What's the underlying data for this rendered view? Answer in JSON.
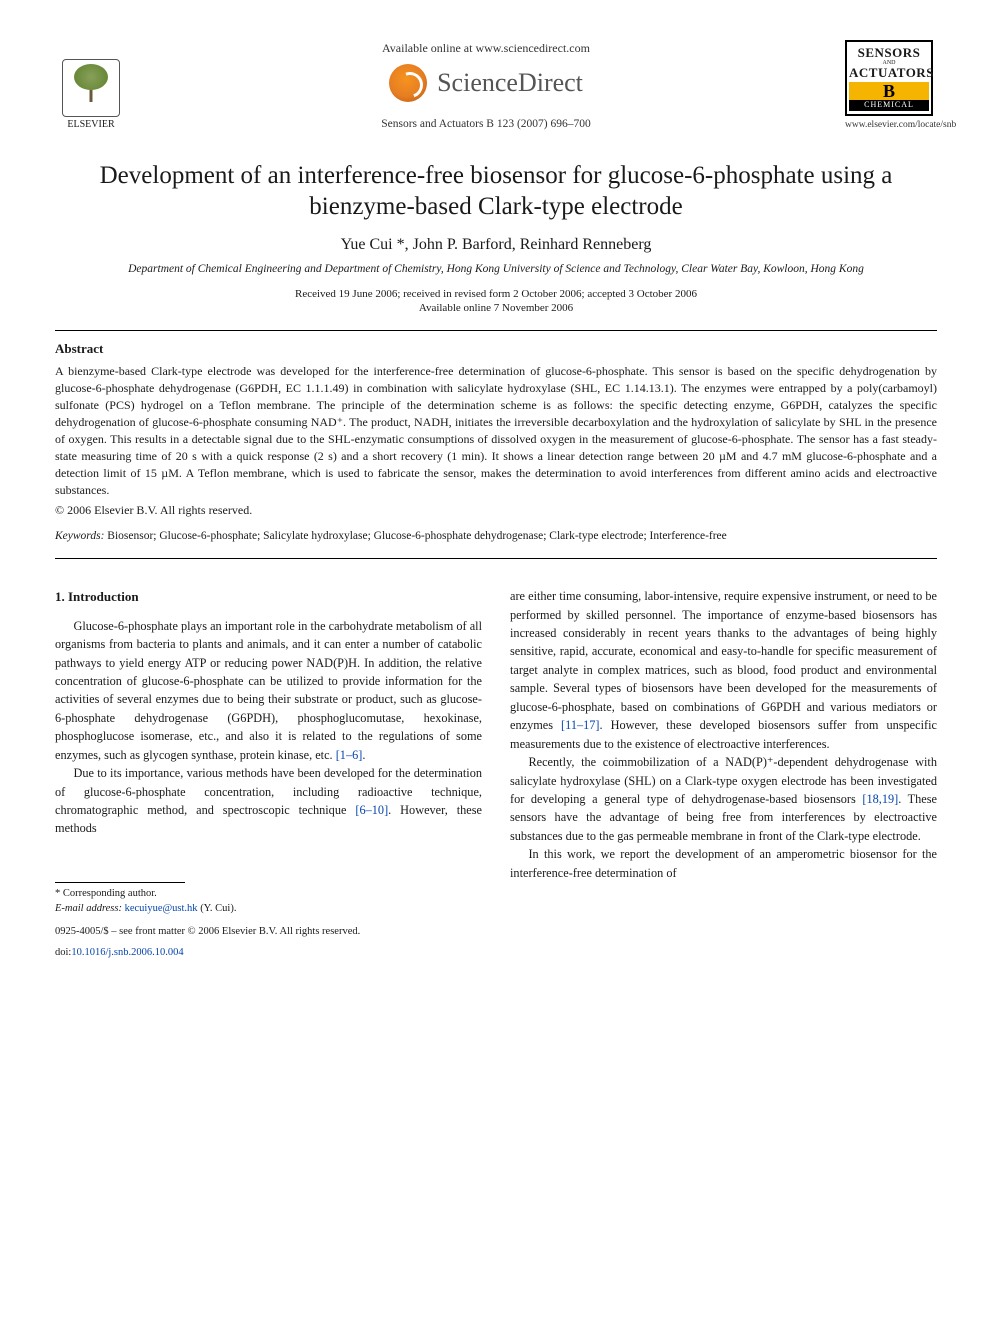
{
  "header": {
    "publisher": "ELSEVIER",
    "available_online": "Available online at www.sciencedirect.com",
    "sciencedirect": "ScienceDirect",
    "journal_reference": "Sensors and Actuators B 123 (2007) 696–700",
    "journal_box": {
      "line1": "SENSORS",
      "and": "AND",
      "line2": "ACTUATORS",
      "letter": "B",
      "chem": "CHEMICAL"
    },
    "journal_url": "www.elsevier.com/locate/snb"
  },
  "title": "Development of an interference-free biosensor for glucose-6-phosphate using a bienzyme-based Clark-type electrode",
  "authors_line": "Yue Cui *, John P. Barford, Reinhard Renneberg",
  "affiliation": "Department of Chemical Engineering and Department of Chemistry, Hong Kong University of Science and Technology,\nClear Water Bay, Kowloon, Hong Kong",
  "dates": {
    "received": "Received 19 June 2006; received in revised form 2 October 2006; accepted 3 October 2006",
    "online": "Available online 7 November 2006"
  },
  "abstract": {
    "heading": "Abstract",
    "body": "A bienzyme-based Clark-type electrode was developed for the interference-free determination of glucose-6-phosphate. This sensor is based on the specific dehydrogenation by glucose-6-phosphate dehydrogenase (G6PDH, EC 1.1.1.49) in combination with salicylate hydroxylase (SHL, EC 1.14.13.1). The enzymes were entrapped by a poly(carbamoyl) sulfonate (PCS) hydrogel on a Teflon membrane. The principle of the determination scheme is as follows: the specific detecting enzyme, G6PDH, catalyzes the specific dehydrogenation of glucose-6-phosphate consuming NAD⁺. The product, NADH, initiates the irreversible decarboxylation and the hydroxylation of salicylate by SHL in the presence of oxygen. This results in a detectable signal due to the SHL-enzymatic consumptions of dissolved oxygen in the measurement of glucose-6-phosphate. The sensor has a fast steady-state measuring time of 20 s with a quick response (2 s) and a short recovery (1 min). It shows a linear detection range between 20 µM and 4.7 mM glucose-6-phosphate and a detection limit of 15 µM. A Teflon membrane, which is used to fabricate the sensor, makes the determination to avoid interferences from different amino acids and electroactive substances.",
    "copyright": "© 2006 Elsevier B.V. All rights reserved."
  },
  "keywords": {
    "label": "Keywords:",
    "list": "Biosensor; Glucose-6-phosphate; Salicylate hydroxylase; Glucose-6-phosphate dehydrogenase; Clark-type electrode; Interference-free"
  },
  "section1": {
    "heading": "1. Introduction",
    "p1": "Glucose-6-phosphate plays an important role in the carbohydrate metabolism of all organisms from bacteria to plants and animals, and it can enter a number of catabolic pathways to yield energy ATP or reducing power NAD(P)H. In addition, the relative concentration of glucose-6-phosphate can be utilized to provide information for the activities of several enzymes due to being their substrate or product, such as glucose-6-phosphate dehydrogenase (G6PDH), phosphoglucomutase, hexokinase, phosphoglucose isomerase, etc., and also it is related to the regulations of some enzymes, such as glycogen synthase, protein kinase, etc. ",
    "p1_ref": "[1–6]",
    "p2a": "Due to its importance, various methods have been developed for the determination of glucose-6-phosphate concentration, including radioactive technique, chromatographic method, and spectroscopic technique ",
    "p2_ref": "[6–10]",
    "p2b": ". However, these methods",
    "p3a": "are either time consuming, labor-intensive, require expensive instrument, or need to be performed by skilled personnel. The importance of enzyme-based biosensors has increased considerably in recent years thanks to the advantages of being highly sensitive, rapid, accurate, economical and easy-to-handle for specific measurement of target analyte in complex matrices, such as blood, food product and environmental sample. Several types of biosensors have been developed for the measurements of glucose-6-phosphate, based on combinations of G6PDH and various mediators or enzymes ",
    "p3_ref": "[11–17]",
    "p3b": ". However, these developed biosensors suffer from unspecific measurements due to the existence of electroactive interferences.",
    "p4a": "Recently, the coimmobilization of a NAD(P)⁺-dependent dehydrogenase with salicylate hydroxylase (SHL) on a Clark-type oxygen electrode has been investigated for developing a general type of dehydrogenase-based biosensors ",
    "p4_ref": "[18,19]",
    "p4b": ". These sensors have the advantage of being free from interferences by electroactive substances due to the gas permeable membrane in front of the Clark-type electrode.",
    "p5": "In this work, we report the development of an amperometric biosensor for the interference-free determination of"
  },
  "footer": {
    "corresponding_label": "* Corresponding author.",
    "email_label": "E-mail address:",
    "email": "kecuiyue@ust.hk",
    "email_suffix": " (Y. Cui).",
    "front_matter": "0925-4005/$ – see front matter © 2006 Elsevier B.V. All rights reserved.",
    "doi_label": "doi:",
    "doi": "10.1016/j.snb.2006.10.004"
  },
  "colors": {
    "link": "#0645ad",
    "orange": "#e67e22",
    "text": "#1a1a1a"
  }
}
